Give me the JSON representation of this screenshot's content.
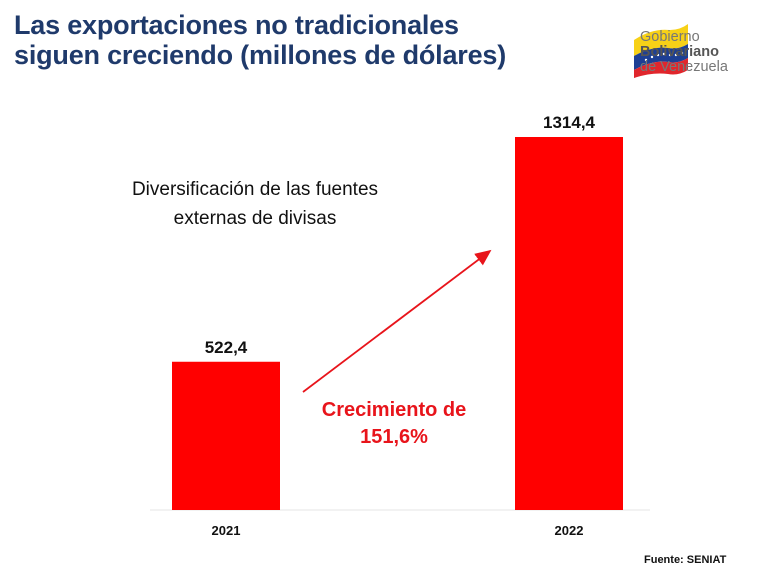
{
  "header": {
    "title_line1": "Las exportaciones no tradicionales",
    "title_line2": "siguen creciendo (millones de dólares)"
  },
  "logo": {
    "line1": "Gobierno",
    "line2": "Bolivariano",
    "line3": "de Venezuela"
  },
  "annotation": {
    "note": "Diversificación de las fuentes externas de divisas",
    "growth_line1": "Crecimiento de",
    "growth_line2": "151,6%"
  },
  "source": "Fuente: SENIAT",
  "chart_data": {
    "type": "bar",
    "title": "Las exportaciones no tradicionales siguen creciendo (millones de dólares)",
    "categories": [
      "2021",
      "2022"
    ],
    "values": [
      522.4,
      1314.4
    ],
    "value_labels": [
      "522,4",
      "1314,4"
    ],
    "xlabel": "",
    "ylabel": "millones de dólares",
    "ylim": [
      0,
      1314.4
    ],
    "grid": false,
    "bar_color": "#ff0000"
  }
}
